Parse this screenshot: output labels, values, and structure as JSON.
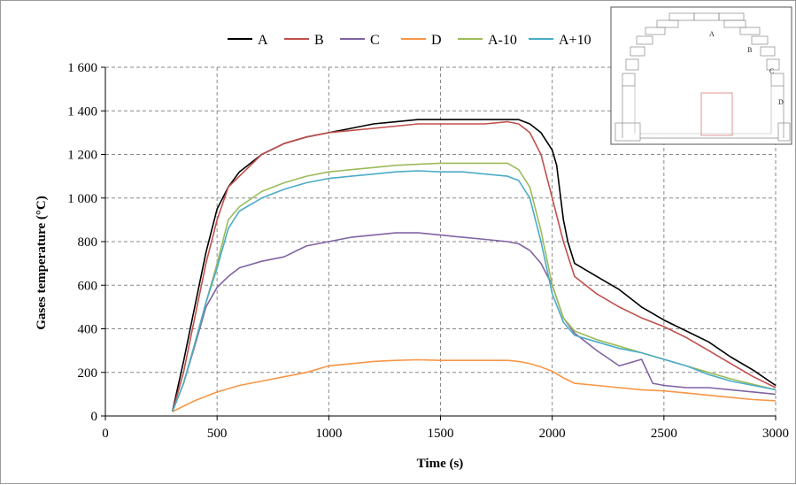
{
  "chart_data": {
    "type": "line",
    "title": "",
    "xlabel": "Time (s)",
    "ylabel": "Gases temperature (°C)",
    "xlim": [
      0,
      3000
    ],
    "ylim": [
      0,
      1600
    ],
    "x_ticks": [
      "0",
      "500",
      "1000",
      "1500",
      "2000",
      "2500",
      "3000"
    ],
    "y_ticks": [
      "0",
      "200",
      "400",
      "600",
      "800",
      "1 000",
      "1 200",
      "1 400",
      "1 600"
    ],
    "grid": true,
    "legend_position": "top",
    "series": [
      {
        "name": "A",
        "color": "#000000",
        "x": [
          300,
          350,
          400,
          450,
          500,
          550,
          600,
          700,
          800,
          900,
          1000,
          1100,
          1200,
          1300,
          1400,
          1500,
          1600,
          1700,
          1800,
          1850,
          1900,
          1950,
          2000,
          2020,
          2050,
          2070,
          2100,
          2200,
          2300,
          2400,
          2500,
          2600,
          2700,
          2800,
          2900,
          3000
        ],
        "y": [
          20,
          250,
          500,
          750,
          950,
          1050,
          1120,
          1200,
          1250,
          1280,
          1300,
          1320,
          1340,
          1350,
          1360,
          1360,
          1360,
          1360,
          1360,
          1360,
          1340,
          1300,
          1220,
          1150,
          900,
          800,
          700,
          640,
          580,
          500,
          440,
          390,
          340,
          270,
          210,
          140
        ]
      },
      {
        "name": "B",
        "color": "#c0504d",
        "x": [
          300,
          350,
          400,
          450,
          500,
          550,
          600,
          700,
          800,
          900,
          1000,
          1100,
          1200,
          1300,
          1400,
          1500,
          1600,
          1700,
          1800,
          1850,
          1900,
          1950,
          2000,
          2050,
          2100,
          2200,
          2300,
          2400,
          2500,
          2600,
          2700,
          2800,
          2900,
          3000
        ],
        "y": [
          20,
          200,
          450,
          700,
          900,
          1050,
          1100,
          1200,
          1250,
          1280,
          1300,
          1310,
          1320,
          1330,
          1340,
          1340,
          1340,
          1340,
          1350,
          1340,
          1300,
          1200,
          1000,
          800,
          640,
          560,
          500,
          450,
          410,
          360,
          300,
          240,
          180,
          130
        ]
      },
      {
        "name": "C",
        "color": "#8064a2",
        "x": [
          300,
          350,
          400,
          450,
          500,
          550,
          600,
          700,
          800,
          900,
          1000,
          1100,
          1200,
          1300,
          1400,
          1500,
          1600,
          1700,
          1800,
          1850,
          1900,
          1950,
          2000,
          2050,
          2100,
          2200,
          2300,
          2400,
          2450,
          2500,
          2600,
          2700,
          2800,
          2900,
          3000
        ],
        "y": [
          20,
          150,
          320,
          500,
          590,
          640,
          680,
          710,
          730,
          780,
          800,
          820,
          830,
          840,
          840,
          830,
          820,
          810,
          800,
          790,
          760,
          700,
          600,
          450,
          380,
          300,
          230,
          260,
          150,
          140,
          130,
          130,
          120,
          110,
          100
        ]
      },
      {
        "name": "D",
        "color": "#f79646",
        "x": [
          300,
          400,
          500,
          600,
          700,
          800,
          900,
          1000,
          1100,
          1200,
          1300,
          1400,
          1500,
          1600,
          1700,
          1800,
          1850,
          1900,
          1950,
          2000,
          2050,
          2100,
          2200,
          2300,
          2400,
          2500,
          2600,
          2700,
          2800,
          2900,
          3000
        ],
        "y": [
          20,
          70,
          110,
          140,
          160,
          180,
          200,
          230,
          240,
          250,
          255,
          258,
          255,
          255,
          255,
          255,
          250,
          240,
          225,
          205,
          175,
          150,
          140,
          130,
          120,
          115,
          105,
          95,
          85,
          75,
          70
        ]
      },
      {
        "name": "A-10",
        "color": "#9bbb59",
        "x": [
          300,
          350,
          400,
          450,
          500,
          550,
          600,
          700,
          800,
          900,
          1000,
          1100,
          1200,
          1300,
          1400,
          1500,
          1600,
          1700,
          1800,
          1850,
          1900,
          1950,
          2000,
          2050,
          2100,
          2200,
          2300,
          2400,
          2500,
          2600,
          2700,
          2800,
          2900,
          3000
        ],
        "y": [
          20,
          150,
          330,
          520,
          700,
          900,
          960,
          1030,
          1070,
          1100,
          1120,
          1130,
          1140,
          1150,
          1155,
          1160,
          1160,
          1160,
          1160,
          1130,
          1050,
          850,
          600,
          450,
          390,
          350,
          320,
          290,
          260,
          230,
          200,
          170,
          145,
          120
        ]
      },
      {
        "name": "A+10",
        "color": "#4bacc6",
        "x": [
          300,
          350,
          400,
          450,
          500,
          550,
          600,
          700,
          800,
          900,
          1000,
          1100,
          1200,
          1300,
          1400,
          1500,
          1600,
          1700,
          1800,
          1850,
          1900,
          1950,
          2000,
          2050,
          2100,
          2200,
          2300,
          2400,
          2500,
          2600,
          2700,
          2800,
          2900,
          3000
        ],
        "y": [
          20,
          150,
          330,
          520,
          680,
          860,
          940,
          1000,
          1040,
          1070,
          1090,
          1100,
          1110,
          1120,
          1125,
          1120,
          1120,
          1110,
          1100,
          1080,
          1000,
          800,
          560,
          430,
          370,
          340,
          310,
          290,
          260,
          230,
          190,
          160,
          140,
          120
        ]
      }
    ],
    "inset": {
      "labels": [
        "A",
        "B",
        "C",
        "D"
      ]
    }
  }
}
